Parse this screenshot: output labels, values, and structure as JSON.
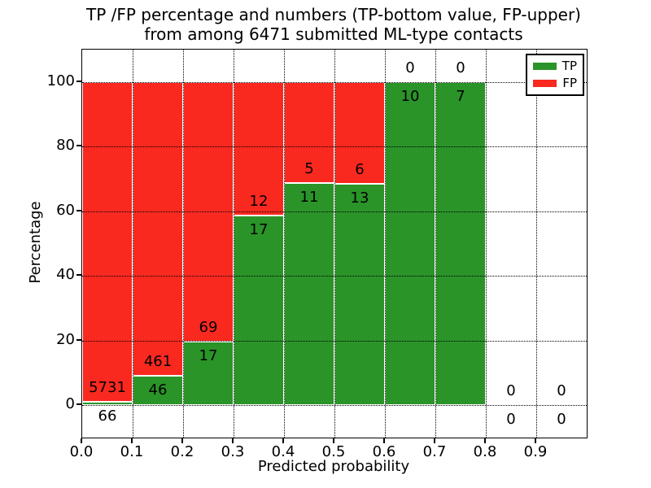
{
  "title": {
    "line1": "TP /FP percentage and numbers (TP-bottom value, FP-upper)",
    "line2": "from among 6471 submitted ML-type contacts"
  },
  "chart_data": {
    "type": "bar",
    "stacked": true,
    "title": "TP /FP percentage and numbers (TP-bottom value, FP-upper)\nfrom among 6471 submitted ML-type contacts",
    "xlabel": "Predicted probability",
    "ylabel": "Percentage",
    "xlim": [
      0.0,
      1.0
    ],
    "ylim": [
      -10,
      110
    ],
    "x_ticks": [
      "0.0",
      "0.1",
      "0.2",
      "0.3",
      "0.4",
      "0.5",
      "0.6",
      "0.7",
      "0.8",
      "0.9"
    ],
    "y_ticks": [
      "0",
      "20",
      "40",
      "60",
      "80",
      "100"
    ],
    "grid": true,
    "grid_style": "dotted-black",
    "colors": {
      "tp": "#2a9428",
      "fp": "#f92920"
    },
    "legend": {
      "position": "upper-right",
      "entries": [
        {
          "label": "TP",
          "color": "#2a9428"
        },
        {
          "label": "FP",
          "color": "#f92920"
        }
      ]
    },
    "total_submitted": 6471,
    "bins": [
      {
        "range": [
          0.0,
          0.1
        ],
        "tp": 66,
        "fp": 5731,
        "tp_pct": 1.14
      },
      {
        "range": [
          0.1,
          0.2
        ],
        "tp": 46,
        "fp": 461,
        "tp_pct": 9.07
      },
      {
        "range": [
          0.2,
          0.3
        ],
        "tp": 17,
        "fp": 69,
        "tp_pct": 19.77
      },
      {
        "range": [
          0.3,
          0.4
        ],
        "tp": 17,
        "fp": 12,
        "tp_pct": 58.62
      },
      {
        "range": [
          0.4,
          0.5
        ],
        "tp": 11,
        "fp": 5,
        "tp_pct": 68.75
      },
      {
        "range": [
          0.5,
          0.6
        ],
        "tp": 13,
        "fp": 6,
        "tp_pct": 68.42
      },
      {
        "range": [
          0.6,
          0.7
        ],
        "tp": 10,
        "fp": 0,
        "tp_pct": 100
      },
      {
        "range": [
          0.7,
          0.8
        ],
        "tp": 7,
        "fp": 0,
        "tp_pct": 100
      },
      {
        "range": [
          0.8,
          0.9
        ],
        "tp": 0,
        "fp": 0,
        "tp_pct": null
      },
      {
        "range": [
          0.9,
          1.0
        ],
        "tp": 0,
        "fp": 0,
        "tp_pct": null
      }
    ]
  }
}
